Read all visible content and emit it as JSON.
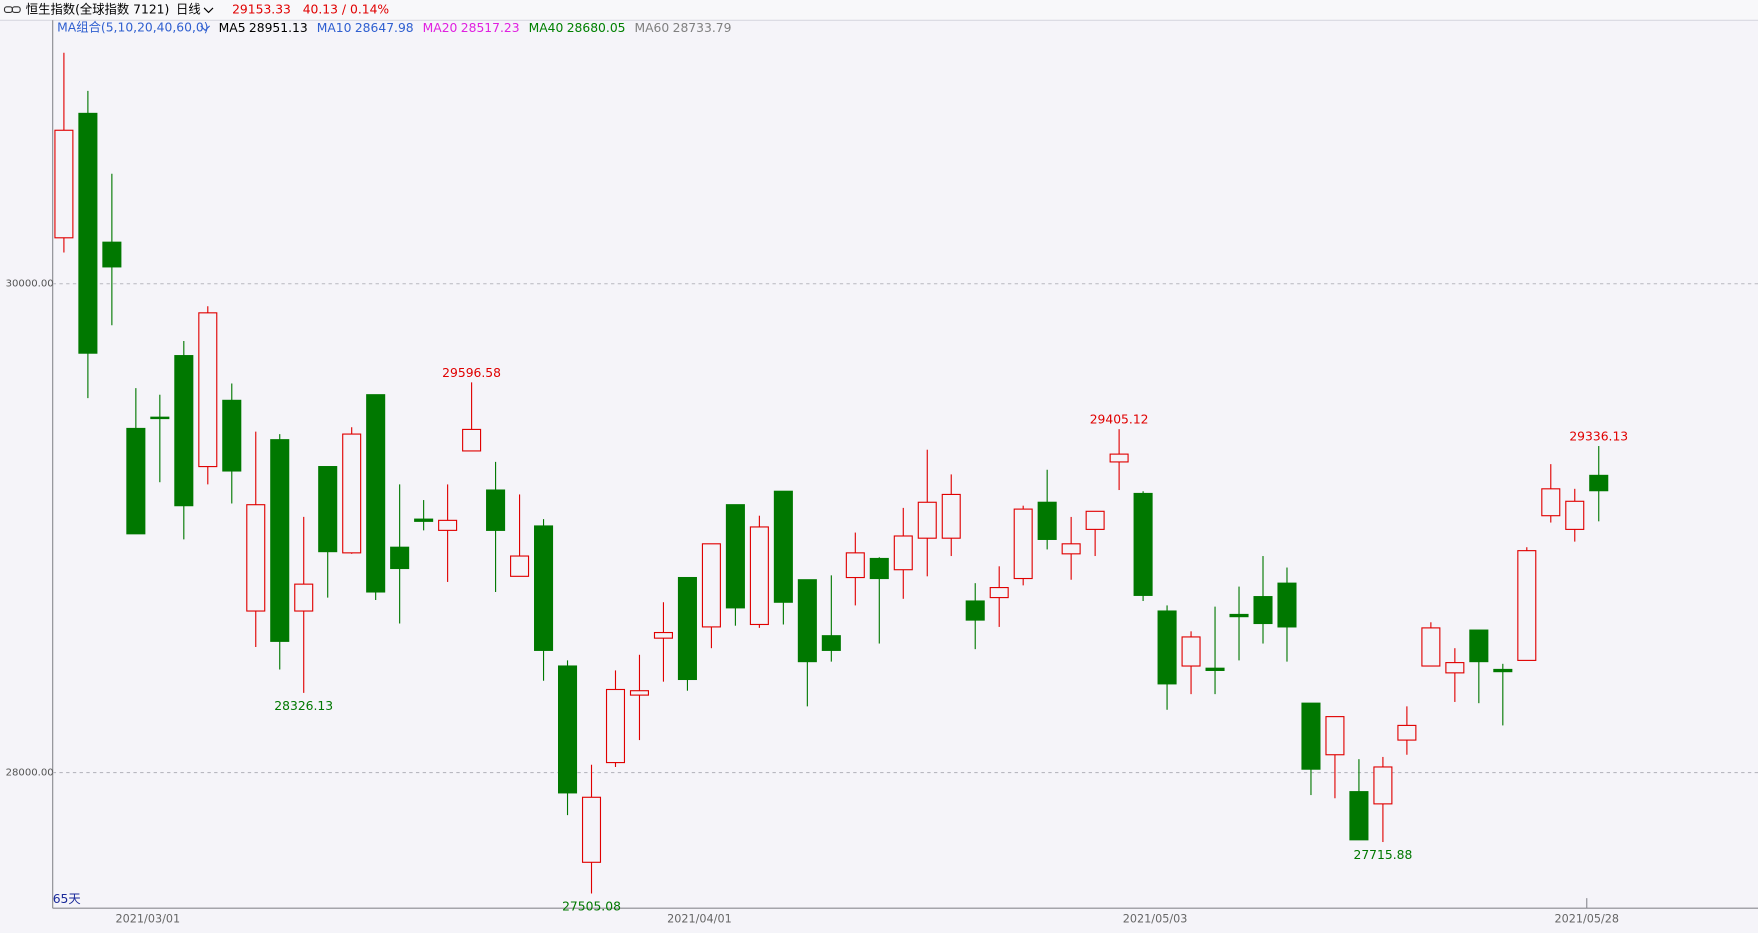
{
  "chart_data": {
    "type": "candlestick",
    "title": "恒生指数(全球指数 7121)",
    "period": "日线",
    "change": "40.13 / 0.14%",
    "indicator": "MA组合(5,10,20,40,60,0)",
    "ma": [
      {
        "name": "MA5",
        "value": 28951.13,
        "color": "#000000"
      },
      {
        "name": "MA10",
        "value": 28647.98,
        "color": "#2f5fd0"
      },
      {
        "name": "MA20",
        "value": 28517.23,
        "color": "#e020e0"
      },
      {
        "name": "MA40",
        "value": 28680.05,
        "color": "#008000"
      },
      {
        "name": "MA60",
        "value": 28733.79,
        "color": "#808080"
      }
    ],
    "count_label": "65天",
    "up_color": "#e00000",
    "down_color": "#007800",
    "ylim": [
      27445,
      31000
    ],
    "yticks": [
      {
        "value": 28000,
        "label": "28000.00"
      },
      {
        "value": 30000,
        "label": "30000.00"
      }
    ],
    "grid": true,
    "categories": [
      null,
      null,
      null,
      null,
      "2021/03/01",
      null,
      null,
      null,
      null,
      null,
      null,
      null,
      null,
      null,
      null,
      null,
      null,
      null,
      null,
      null,
      null,
      null,
      null,
      null,
      null,
      null,
      null,
      "2021/04/01",
      null,
      null,
      null,
      null,
      null,
      null,
      null,
      null,
      null,
      null,
      null,
      null,
      null,
      null,
      null,
      null,
      null,
      null,
      "2021/05/03",
      null,
      null,
      null,
      null,
      null,
      null,
      null,
      null,
      null,
      null,
      null,
      null,
      null,
      null,
      null,
      null,
      null,
      "2021/05/28"
    ],
    "open": [
      30188,
      30697,
      30170,
      29408,
      29454,
      29706,
      29252,
      29523,
      28661,
      29362,
      28661,
      29252,
      28899,
      29546,
      28922,
      29037,
      28991,
      29316,
      29156,
      28803,
      29009,
      28436,
      27633,
      28041,
      28317,
      28550,
      28798,
      28596,
      29096,
      28606,
      29151,
      28789,
      28560,
      28798,
      28876,
      28830,
      28959,
      28959,
      28702,
      28716,
      28794,
      29106,
      28895,
      28995,
      29271,
      29142,
      28661,
      28436,
      28427,
      28647,
      28720,
      28775,
      28284,
      28073,
      27922,
      27872,
      28133,
      28436,
      28408,
      28583,
      28422,
      28459,
      29051,
      28995,
      29216
    ],
    "high": [
      30945,
      30789,
      30450,
      29573,
      29546,
      29766,
      29908,
      29592,
      29395,
      29385,
      29046,
      29252,
      29413,
      29546,
      29179,
      29115,
      29179,
      29596.58,
      29271,
      29138,
      29037,
      28459,
      28032,
      28418,
      28482,
      28697,
      28798,
      28936,
      29096,
      29051,
      29151,
      28789,
      28807,
      28982,
      28881,
      29083,
      29321,
      29220,
      28775,
      28844,
      29092,
      29239,
      29046,
      29069,
      29405.12,
      29151,
      28684,
      28578,
      28679,
      28761,
      28886,
      28839,
      28284,
      28229,
      28055,
      28064,
      28271,
      28615,
      28509,
      28583,
      28445,
      28922,
      29262,
      29161,
      29336.13
    ],
    "low": [
      30128,
      29532,
      29830,
      28977,
      29188,
      28954,
      29179,
      29101,
      28514,
      28422,
      28326.13,
      28716,
      28895,
      28706,
      28610,
      28991,
      28780,
      29316,
      28739,
      28803,
      28376,
      27826,
      27505.08,
      28023,
      28133,
      28372,
      28335,
      28509,
      28601,
      28592,
      28606,
      28271,
      28454,
      28684,
      28528,
      28711,
      28803,
      28886,
      28505,
      28596,
      28766,
      28913,
      28789,
      28886,
      29156,
      28702,
      28257,
      28321,
      28321,
      28459,
      28528,
      28454,
      27908,
      27895,
      27725,
      27715.88,
      28073,
      28436,
      28289,
      28284,
      28193,
      28459,
      29023,
      28945,
      29028
    ],
    "close": [
      30628,
      29716,
      30069,
      28977,
      29450,
      29092,
      29881,
      29234,
      29096,
      28537,
      28771,
      28904,
      29385,
      28739,
      28835,
      29028,
      29032,
      29404,
      28991,
      28886,
      28500,
      27917,
      27899,
      28340,
      28335,
      28573,
      28381,
      28936,
      28674,
      29005,
      28697,
      28454,
      28500,
      28899,
      28794,
      28968,
      29106,
      29138,
      28624,
      28757,
      29078,
      28954,
      28936,
      29069,
      29303,
      28725,
      28363,
      28555,
      28418,
      28638,
      28610,
      28596,
      28014,
      28229,
      27725,
      28023,
      28193,
      28592,
      28450,
      28454,
      28413,
      28908,
      29161,
      29110,
      29153.33
    ]
  }
}
